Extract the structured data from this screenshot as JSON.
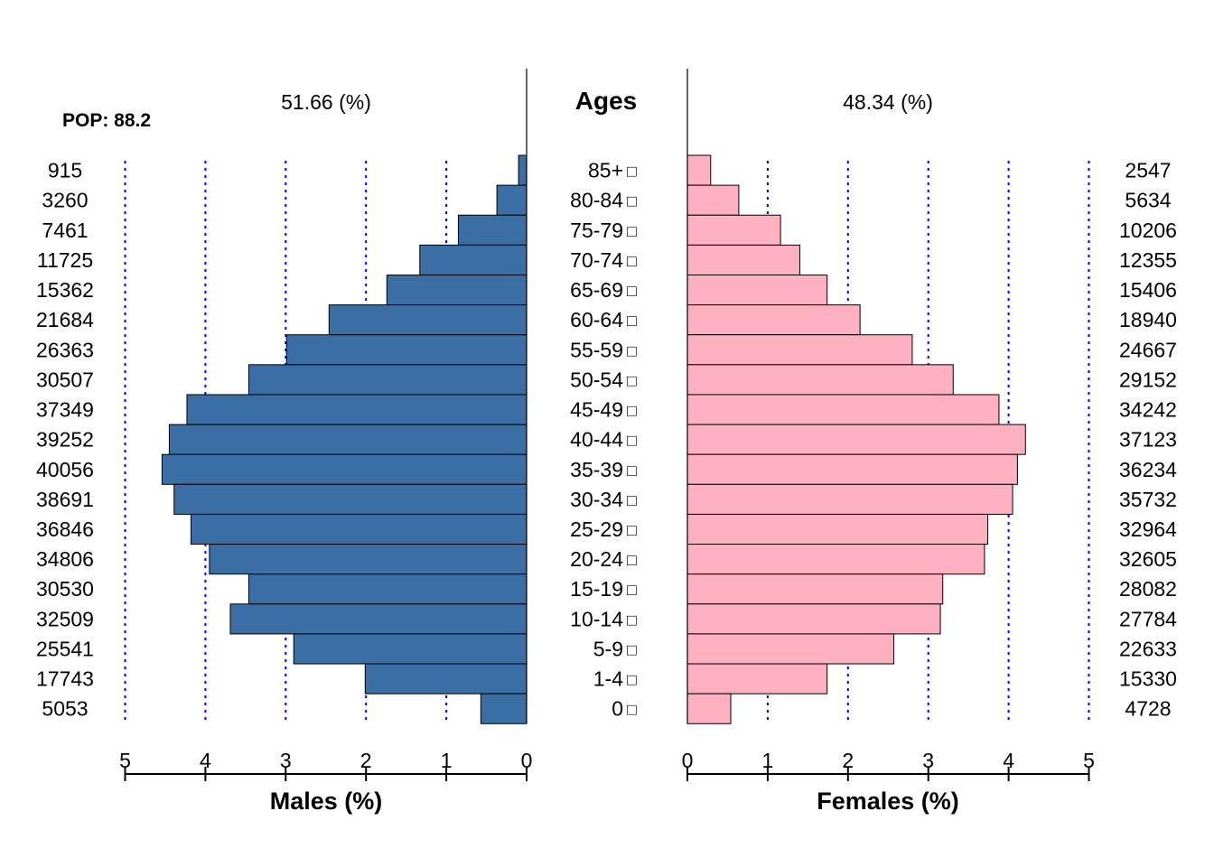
{
  "chart_data": {
    "type": "bar",
    "subtype": "population-pyramid",
    "pop_label": "POP: 88.2",
    "ages_title": "Ages",
    "age_groups": [
      "85+",
      "80-84",
      "75-79",
      "70-74",
      "65-69",
      "60-64",
      "55-59",
      "50-54",
      "45-49",
      "40-44",
      "35-39",
      "30-34",
      "25-29",
      "20-24",
      "15-19",
      "10-14",
      "5-9",
      "1-4",
      "0"
    ],
    "age_marker": "□",
    "males": {
      "header": "51.66 (%)",
      "xlabel": "Males (%)",
      "counts": [
        "915",
        "3260",
        "7461",
        "11725",
        "15362",
        "21684",
        "26363",
        "30507",
        "37349",
        "39252",
        "40056",
        "38691",
        "36846",
        "34806",
        "30530",
        "32509",
        "25541",
        "17743",
        "5053"
      ],
      "percent": [
        0.1,
        0.37,
        0.85,
        1.33,
        1.74,
        2.46,
        2.99,
        3.46,
        4.23,
        4.45,
        4.54,
        4.39,
        4.18,
        3.95,
        3.46,
        3.69,
        2.9,
        2.01,
        0.57
      ],
      "color": "#3a6ea5",
      "xlim": [
        5,
        0
      ],
      "ticks": [
        "5",
        "4",
        "3",
        "2",
        "1",
        "0"
      ]
    },
    "females": {
      "header": "48.34 (%)",
      "xlabel": "Females (%)",
      "counts": [
        "2547",
        "5634",
        "10206",
        "12355",
        "15406",
        "18940",
        "24667",
        "29152",
        "34242",
        "37123",
        "36234",
        "35732",
        "32964",
        "32605",
        "28082",
        "27784",
        "22633",
        "15330",
        "4728"
      ],
      "percent": [
        0.29,
        0.64,
        1.16,
        1.4,
        1.74,
        2.15,
        2.8,
        3.31,
        3.88,
        4.21,
        4.11,
        4.05,
        3.74,
        3.7,
        3.18,
        3.15,
        2.57,
        1.74,
        0.54
      ],
      "color": "#ffb0c1",
      "xlim": [
        0,
        5
      ],
      "ticks": [
        "0",
        "1",
        "2",
        "3",
        "4",
        "5"
      ]
    },
    "gridline_color": "#0000ff",
    "grid": true
  }
}
